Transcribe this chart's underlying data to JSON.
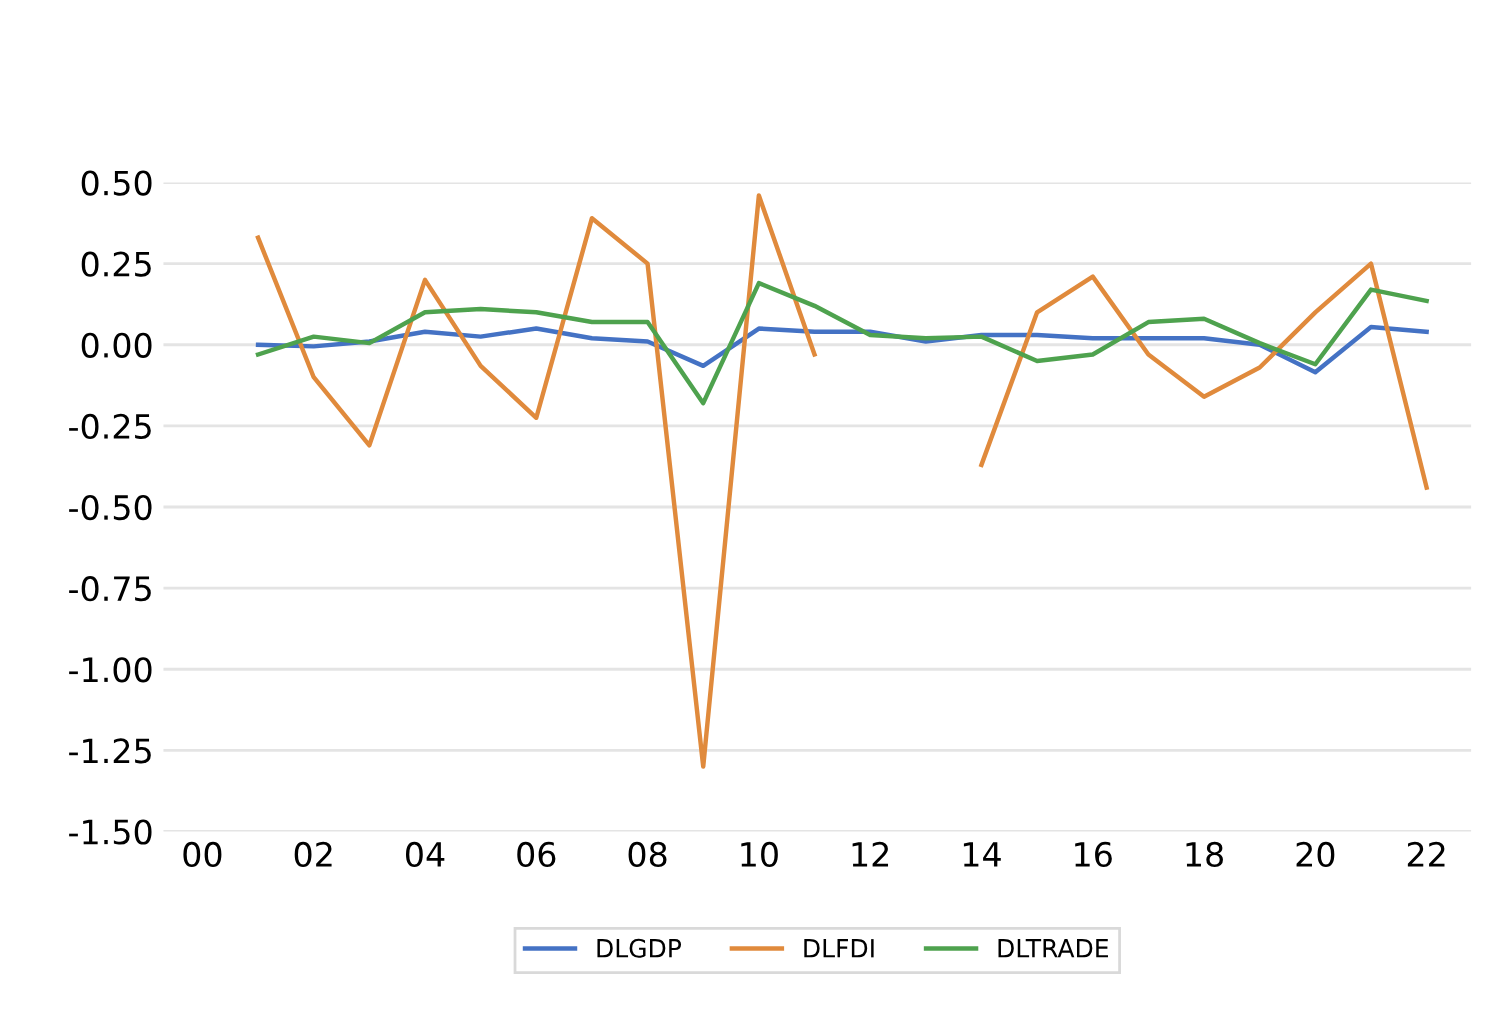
{
  "chart_data": {
    "type": "line",
    "x": [
      1,
      2,
      3,
      4,
      5,
      6,
      7,
      8,
      9,
      10,
      11,
      12,
      13,
      14,
      15,
      16,
      17,
      18,
      19,
      20,
      21,
      22
    ],
    "series": [
      {
        "name": "DLGDP",
        "color": "#4472c4",
        "values": [
          0.0,
          -0.005,
          0.01,
          0.04,
          0.025,
          0.05,
          0.02,
          0.01,
          -0.065,
          0.05,
          0.04,
          0.04,
          0.01,
          0.03,
          0.03,
          0.02,
          0.02,
          0.02,
          0.0,
          -0.085,
          0.055,
          0.04
        ]
      },
      {
        "name": "DLFDI",
        "color": "#e08a3c",
        "values": [
          0.33,
          -0.1,
          -0.31,
          0.2,
          -0.065,
          -0.225,
          0.39,
          0.25,
          -1.3,
          0.46,
          -0.03,
          null,
          null,
          -0.37,
          0.1,
          0.21,
          -0.03,
          -0.16,
          -0.07,
          0.1,
          0.25,
          -0.44
        ]
      },
      {
        "name": "DLTRADE",
        "color": "#4ea24e",
        "values": [
          -0.03,
          0.025,
          0.005,
          0.1,
          0.11,
          0.1,
          0.07,
          0.07,
          -0.18,
          0.19,
          0.12,
          0.03,
          0.02,
          0.025,
          -0.05,
          -0.03,
          0.07,
          0.08,
          0.005,
          -0.06,
          0.17,
          0.135
        ]
      }
    ],
    "xlim": [
      -0.7,
      22.8
    ],
    "xticks": [
      {
        "value": 0,
        "label": "00"
      },
      {
        "value": 2,
        "label": "02"
      },
      {
        "value": 4,
        "label": "04"
      },
      {
        "value": 6,
        "label": "06"
      },
      {
        "value": 8,
        "label": "08"
      },
      {
        "value": 10,
        "label": "10"
      },
      {
        "value": 12,
        "label": "12"
      },
      {
        "value": 14,
        "label": "14"
      },
      {
        "value": 16,
        "label": "16"
      },
      {
        "value": 18,
        "label": "18"
      },
      {
        "value": 20,
        "label": "20"
      },
      {
        "value": 22,
        "label": "22"
      }
    ],
    "ylim": [
      -1.5,
      0.5
    ],
    "yticks": [
      {
        "value": -1.5,
        "label": "-1.50"
      },
      {
        "value": -1.25,
        "label": "-1.25"
      },
      {
        "value": -1.0,
        "label": "-1.00"
      },
      {
        "value": -0.75,
        "label": "-0.75"
      },
      {
        "value": -0.5,
        "label": "-0.50"
      },
      {
        "value": -0.25,
        "label": "-0.25"
      },
      {
        "value": 0,
        "label": "0.00"
      },
      {
        "value": 0.25,
        "label": "0.25"
      },
      {
        "value": 0.5,
        "label": "0.50"
      }
    ],
    "grid": "y",
    "legend": "bottom",
    "line_style": "solid",
    "marker": "none"
  }
}
